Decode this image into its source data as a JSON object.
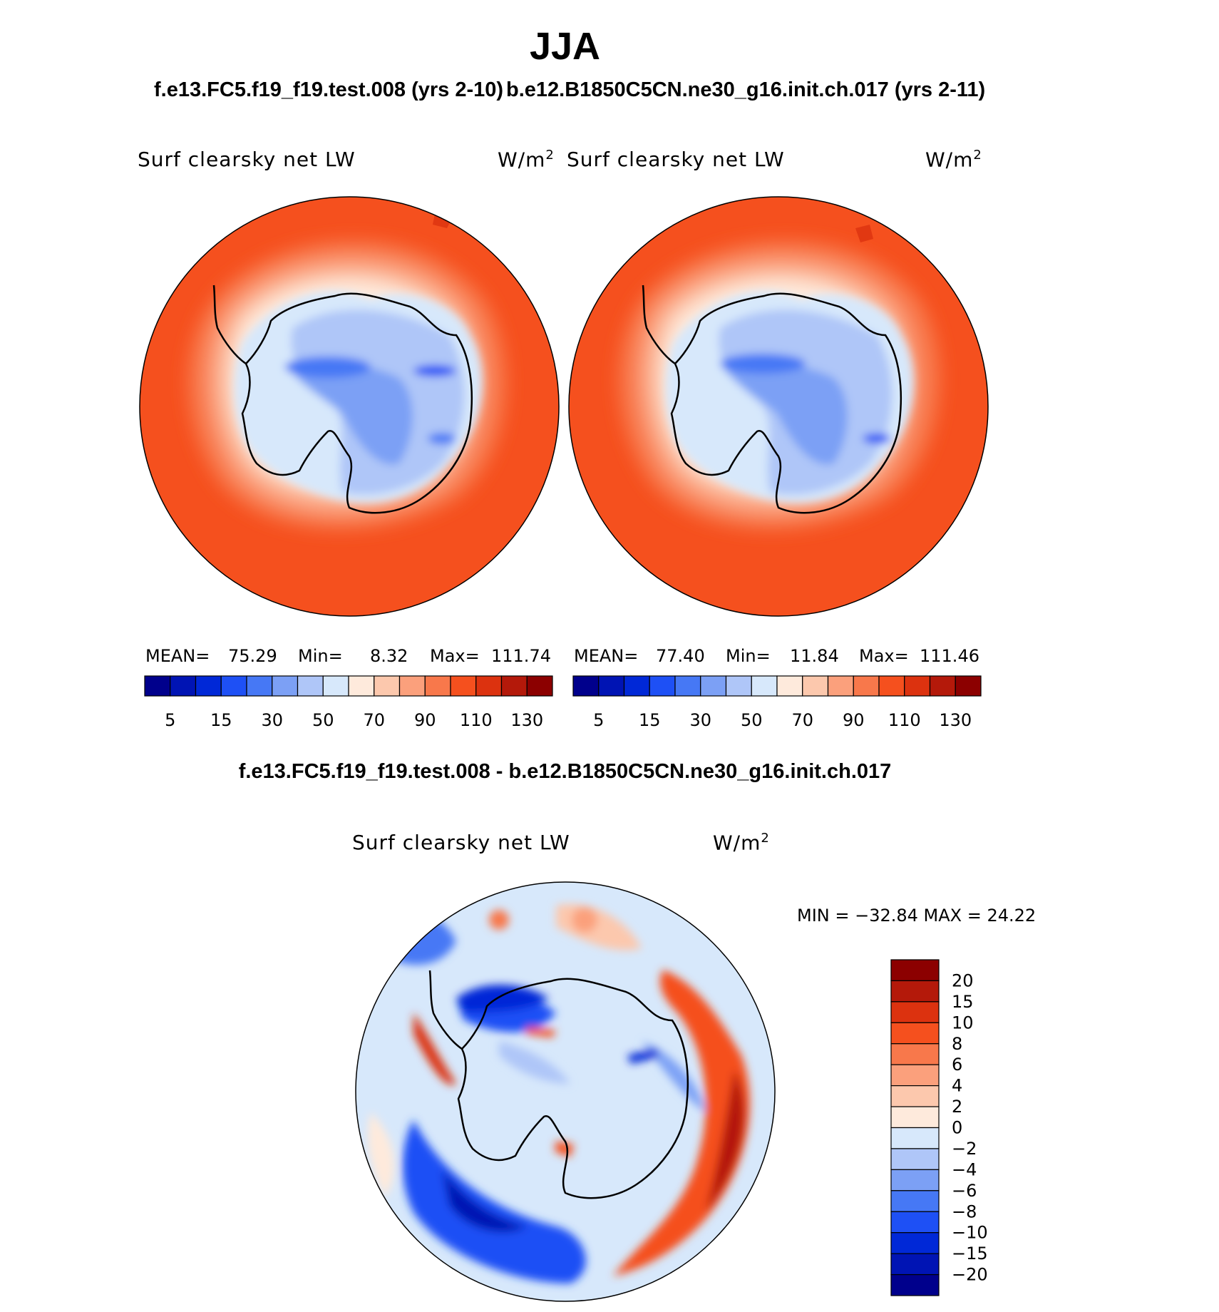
{
  "page": {
    "title": "JJA",
    "case1": "f.e13.FC5.f19_f19.test.008 (yrs 2-10)",
    "case2": "b.e12.B1850C5CN.ne30_g16.init.ch.017 (yrs 2-11)",
    "diff_title": "f.e13.FC5.f19_f19.test.008 - b.e12.B1850C5CN.ne30_g16.init.ch.017"
  },
  "panels": [
    {
      "variable": "Surf clearsky net LW",
      "units": "W/m",
      "units_exp": "2",
      "stats": {
        "mean_label": "MEAN=",
        "mean": "75.29",
        "min_label": "Min=",
        "min": "8.32",
        "max_label": "Max=",
        "max": "111.74"
      }
    },
    {
      "variable": "Surf clearsky net LW",
      "units": "W/m",
      "units_exp": "2",
      "stats": {
        "mean_label": "MEAN=",
        "mean": "77.40",
        "min_label": "Min=",
        "min": "11.84",
        "max_label": "Max=",
        "max": "111.46"
      }
    },
    {
      "variable": "Surf clearsky net LW",
      "units": "W/m",
      "units_exp": "2",
      "stats_text": "MIN = −32.84 MAX =   24.22"
    }
  ],
  "colorbar_main": {
    "colors": [
      "#00008c",
      "#0014b4",
      "#0028d7",
      "#1e50f5",
      "#4678f5",
      "#7ca0f5",
      "#afc6f8",
      "#d7e8fb",
      "#feeadc",
      "#fcc8ad",
      "#fba07c",
      "#f8784b",
      "#f5501e",
      "#dc320f",
      "#b4190a",
      "#8c0000"
    ],
    "tick_labels": [
      "5",
      "15",
      "30",
      "50",
      "70",
      "90",
      "110",
      "130"
    ]
  },
  "colorbar_diff": {
    "colors": [
      "#8c0000",
      "#b4190a",
      "#dc320f",
      "#f5501e",
      "#f8784b",
      "#fba07c",
      "#fcc8ad",
      "#feeadc",
      "#d7e8fb",
      "#afc6f8",
      "#7ca0f5",
      "#4678f5",
      "#1e50f5",
      "#0028d7",
      "#0014b4",
      "#00008c"
    ],
    "tick_labels": [
      "20",
      "15",
      "10",
      "8",
      "6",
      "4",
      "2",
      "0",
      "−2",
      "−4",
      "−6",
      "−8",
      "−10",
      "−15",
      "−20"
    ]
  },
  "chart_data": [
    {
      "type": "heatmap",
      "projection": "south polar stereographic",
      "title": "Surf clearsky net LW",
      "units": "W/m2",
      "season": "JJA",
      "case": "f.e13.FC5.f19_f19.test.008 (yrs 2-10)",
      "levels": [
        5,
        10,
        15,
        20,
        30,
        40,
        50,
        60,
        70,
        80,
        90,
        100,
        110,
        120,
        130
      ],
      "mean": 75.29,
      "min": 8.32,
      "max": 111.74
    },
    {
      "type": "heatmap",
      "projection": "south polar stereographic",
      "title": "Surf clearsky net LW",
      "units": "W/m2",
      "season": "JJA",
      "case": "b.e12.B1850C5CN.ne30_g16.init.ch.017 (yrs 2-11)",
      "levels": [
        5,
        10,
        15,
        20,
        30,
        40,
        50,
        60,
        70,
        80,
        90,
        100,
        110,
        120,
        130
      ],
      "mean": 77.4,
      "min": 11.84,
      "max": 111.46
    },
    {
      "type": "heatmap",
      "projection": "south polar stereographic",
      "title": "Surf clearsky net LW",
      "units": "W/m2",
      "case": "f.e13.FC5.f19_f19.test.008 - b.e12.B1850C5CN.ne30_g16.init.ch.017",
      "levels": [
        -20,
        -15,
        -10,
        -8,
        -6,
        -4,
        -2,
        0,
        2,
        4,
        6,
        8,
        10,
        15,
        20
      ],
      "min": -32.84,
      "max": 24.22
    }
  ]
}
